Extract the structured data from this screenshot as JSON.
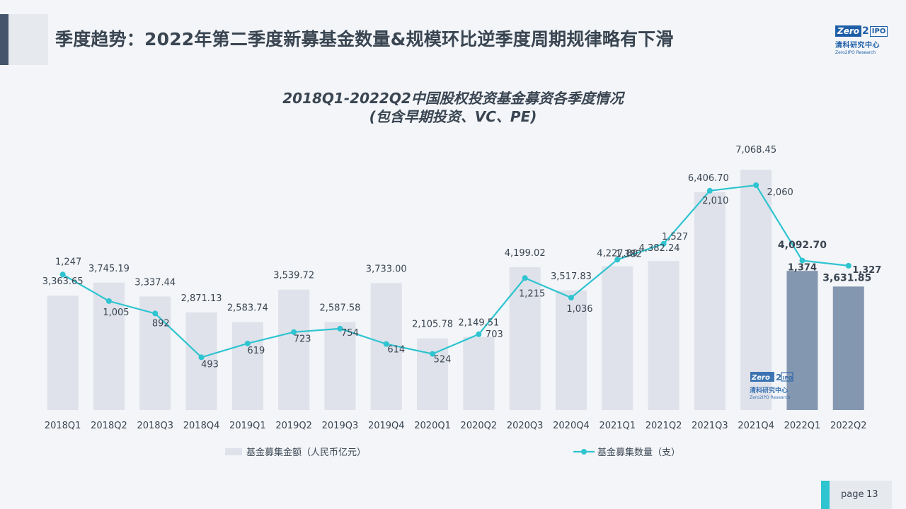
{
  "header": {
    "title": "季度趋势：2022年第二季度新募基金数量&规模环比逆季度周期规律略有下滑"
  },
  "logo": {
    "mark_zero": "Zero",
    "mark_two": "2",
    "mark_ipo": "IPO",
    "name_cn": "清科研究中心",
    "name_en": "Zero2IPO Research"
  },
  "footer": {
    "page_label": "page",
    "page_number": "13"
  },
  "colors": {
    "bar": "#dfe2ea",
    "bar_highlight": "#8497b0",
    "line": "#2ec4d0",
    "text": "#3a4552",
    "accent": "#44546a"
  },
  "chart_data": {
    "type": "bar",
    "title": "2018Q1-2022Q2中国股权投资基金募资各季度情况",
    "subtitle": "(包含早期投资、VC、PE)",
    "categories": [
      "2018Q1",
      "2018Q2",
      "2018Q3",
      "2018Q4",
      "2019Q1",
      "2019Q2",
      "2019Q3",
      "2019Q4",
      "2020Q1",
      "2020Q2",
      "2020Q3",
      "2020Q4",
      "2021Q1",
      "2021Q2",
      "2021Q3",
      "2021Q4",
      "2022Q1",
      "2022Q2"
    ],
    "series": [
      {
        "name": "基金募集金额（人民币亿元）",
        "type": "bar",
        "values": [
          3363.65,
          3745.19,
          3337.44,
          2871.13,
          2583.74,
          3539.72,
          2587.58,
          3733.0,
          2105.78,
          2149.51,
          4199.02,
          3517.83,
          4227.8,
          4382.24,
          6406.7,
          7068.45,
          4092.7,
          3631.85
        ],
        "labels": [
          "3,363.65",
          "3,745.19",
          "3,337.44",
          "2,871.13",
          "2,583.74",
          "3,539.72",
          "2,587.58",
          "3,733.00",
          "2,105.78",
          "2,149.51",
          "4,199.02",
          "3,517.83",
          "4,227.80",
          "4,382.24",
          "6,406.70",
          "7,068.45",
          "4,092.70",
          "3,631.85"
        ],
        "highlight": [
          "2022Q1",
          "2022Q2"
        ]
      },
      {
        "name": "基金募集数量（支）",
        "type": "line",
        "values": [
          1247,
          1005,
          892,
          493,
          619,
          723,
          754,
          614,
          524,
          703,
          1215,
          1036,
          1382,
          1527,
          2010,
          2060,
          1374,
          1327
        ],
        "labels": [
          "1,247",
          "1,005",
          "892",
          "493",
          "619",
          "723",
          "754",
          "614",
          "524",
          "703",
          "1,215",
          "1,036",
          "1,382",
          "1,527",
          "2,010",
          "2,060",
          "1,374",
          "1,327"
        ]
      }
    ],
    "legend_position": "bottom",
    "grid": false
  }
}
